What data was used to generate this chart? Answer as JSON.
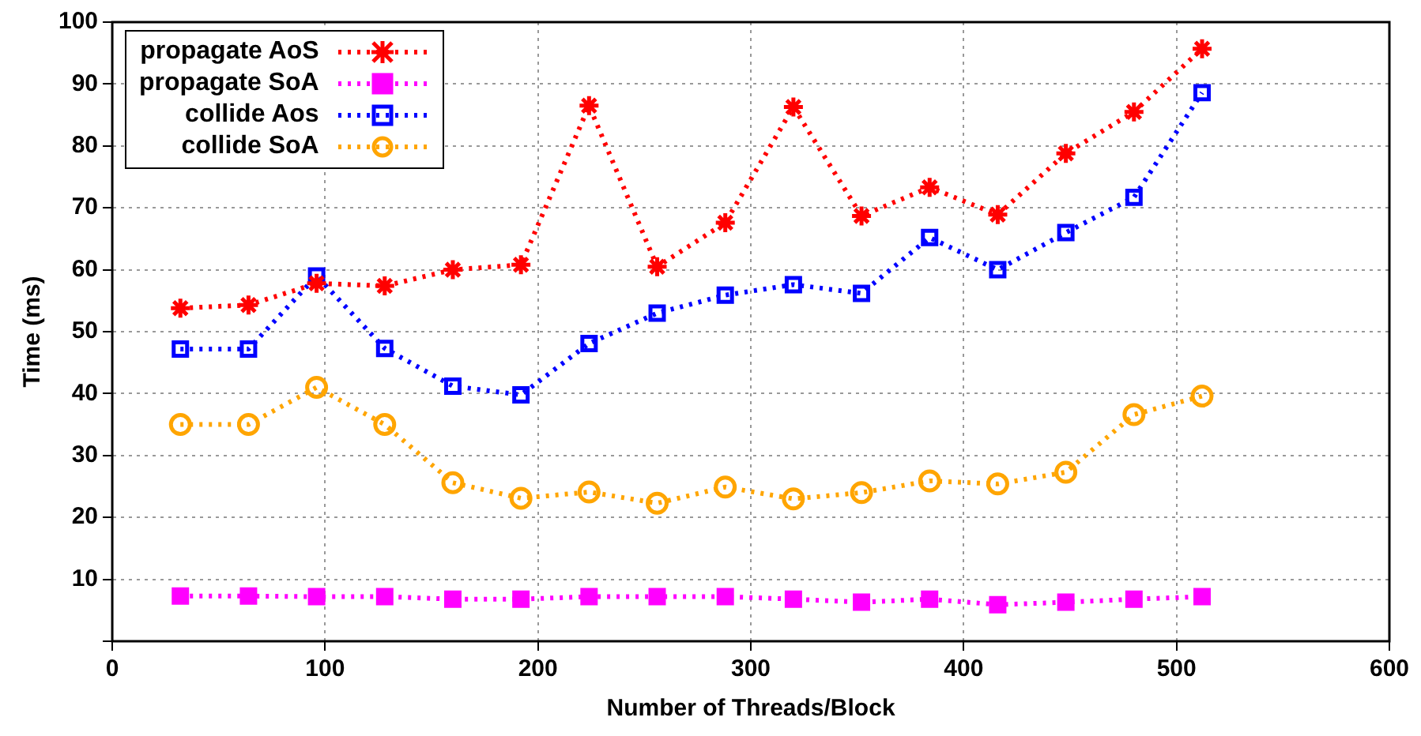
{
  "chart_data": {
    "type": "line",
    "xlabel": "Number of Threads/Block",
    "ylabel": "Time (ms)",
    "x": [
      32,
      64,
      96,
      128,
      160,
      192,
      224,
      256,
      288,
      320,
      352,
      384,
      416,
      448,
      480,
      512
    ],
    "xlim": [
      0,
      600
    ],
    "xticks": [
      0,
      100,
      200,
      300,
      400,
      500,
      600
    ],
    "ylim": [
      0,
      100
    ],
    "yticks": [
      {
        "value": 0,
        "label": null
      },
      10,
      20,
      30,
      40,
      50,
      60,
      70,
      80,
      90,
      100
    ],
    "grid": true,
    "legend": "top left",
    "line_style": "dotted",
    "series": [
      {
        "name": "propagate AoS",
        "color": "#ff0000",
        "marker": "cross",
        "values": [
          53.8,
          54.3,
          57.8,
          57.4,
          60,
          60.8,
          86.5,
          60.5,
          67.6,
          86.3,
          68.7,
          73.3,
          68.9,
          78.8,
          85.5,
          95.7
        ]
      },
      {
        "name": "propagate SoA",
        "color": "#ff00ff",
        "marker": "square",
        "values": [
          7.3,
          7.3,
          7.2,
          7.2,
          6.8,
          6.8,
          7.2,
          7.2,
          7.2,
          6.8,
          6.3,
          6.8,
          5.9,
          6.3,
          6.8,
          7.2
        ]
      },
      {
        "name": "collide Aos",
        "color": "#0000ff",
        "marker": "square",
        "values": [
          47.2,
          47.2,
          59,
          47.3,
          41.2,
          39.8,
          48.1,
          53,
          55.9,
          57.6,
          56.2,
          65.2,
          60,
          66,
          71.7,
          88.6
        ]
      },
      {
        "name": "collide SoA",
        "color": "#ffa500",
        "marker": "circle",
        "values": [
          35,
          35,
          41,
          35,
          25.6,
          23.1,
          24.1,
          22.3,
          24.9,
          23,
          24,
          25.9,
          25.4,
          27.3,
          36.6,
          39.6
        ]
      }
    ]
  }
}
